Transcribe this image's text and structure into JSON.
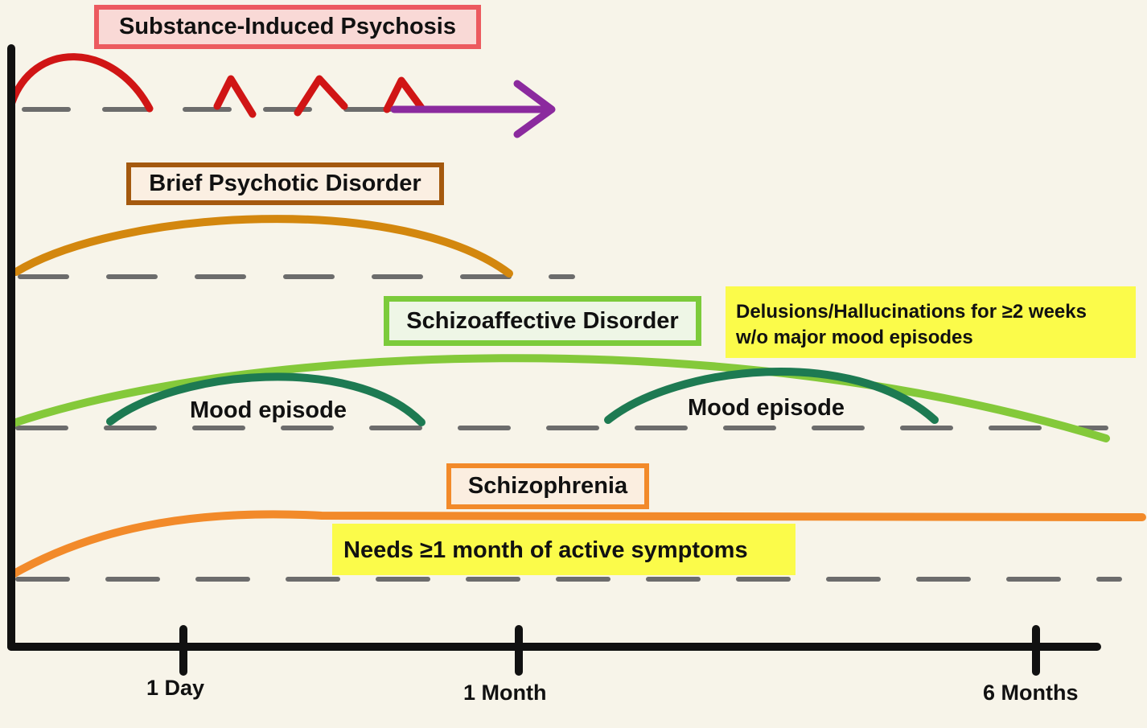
{
  "titles": {
    "substance": "Substance-Induced Psychosis",
    "brief": "Brief Psychotic Disorder",
    "schizoaffective": "Schizoaffective Disorder",
    "schizophrenia": "Schizophrenia"
  },
  "notes": {
    "schizoaffective_line1": "Delusions/Hallucinations for ≥2 weeks",
    "schizoaffective_line2": "w/o major mood episodes",
    "schizophrenia": "Needs ≥1 month of active symptoms"
  },
  "mood_labels": [
    "Mood episode",
    "Mood episode"
  ],
  "axis": {
    "ticks": [
      "1 Day",
      "1 Month",
      "6 Months"
    ]
  },
  "colors": {
    "background": "#f7f4e9",
    "substance_curve": "#d01515",
    "substance_arrow": "#8b2a9e",
    "brief_curve": "#d3870e",
    "schizoaffective_curve": "#84c93a",
    "mood_curve": "#1d7a52",
    "schizophrenia_curve": "#f28a2a",
    "note_fill": "#fbfb4a",
    "dash": "#6c6c6c",
    "axis": "#111111"
  }
}
